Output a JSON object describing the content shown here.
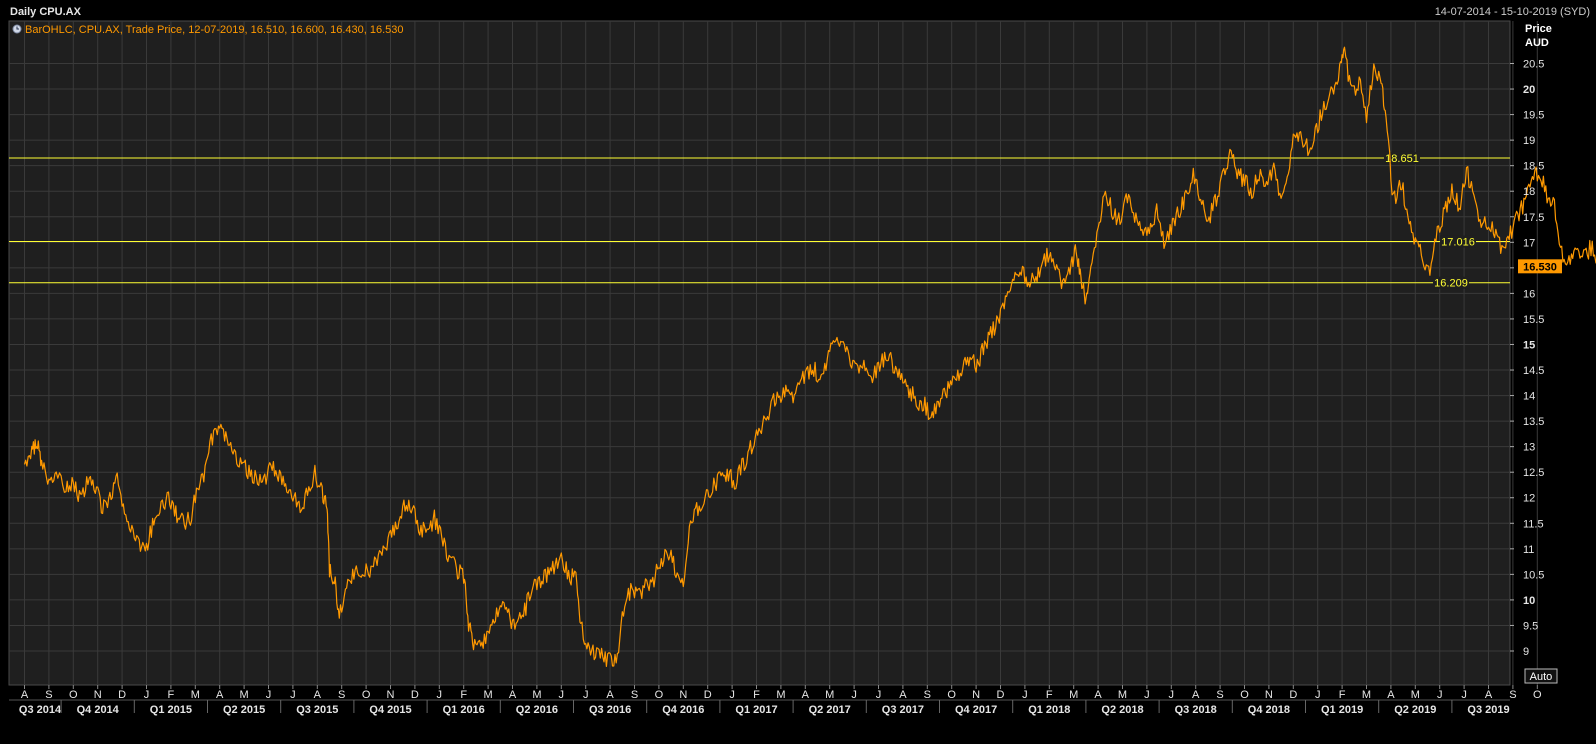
{
  "header": {
    "title": "Daily CPU.AX",
    "date_range": "14-07-2014 - 15-10-2019 (SYD)"
  },
  "legend": {
    "text": "BarOHLC, CPU.AX, Trade Price, 12-07-2019, 16.510, 16.600, 16.430, 16.530",
    "icon": "clock-icon"
  },
  "axis": {
    "price_label": "Price",
    "currency_label": "AUD",
    "auto_label": "Auto"
  },
  "colors": {
    "background": "#000000",
    "plot": "#1f1f1f",
    "grid": "#3a3a3a",
    "series": "#ff9900",
    "level_lines": "#ffff33",
    "text": "#e6e6e6",
    "last_price_badge": "#ff9900"
  },
  "chart_data": {
    "type": "line",
    "title": "Daily CPU.AX",
    "ylabel": "Price AUD",
    "ylim": [
      8.7,
      21.25
    ],
    "yticks": [
      9,
      9.5,
      10,
      10.5,
      11,
      11.5,
      12,
      12.5,
      13,
      13.5,
      14,
      14.5,
      15,
      15.5,
      16,
      16.5,
      17,
      17.5,
      18,
      18.5,
      19,
      19.5,
      20,
      20.5
    ],
    "ytick_labels": [
      "9",
      "9.5",
      "10",
      "10.5",
      "11",
      "11.5",
      "12",
      "12.5",
      "13",
      "13.5",
      "14",
      "14.5",
      "15",
      "15.5",
      "16",
      "16.5",
      "17",
      "17.5",
      "18",
      "18.5",
      "19",
      "19.5",
      "20",
      "20.5"
    ],
    "yticks_bold": [
      10,
      15,
      20
    ],
    "x_months": [
      "A",
      "S",
      "O",
      "N",
      "D",
      "J",
      "F",
      "M",
      "A",
      "M",
      "J",
      "J",
      "A",
      "S",
      "O",
      "N",
      "D",
      "J",
      "F",
      "M",
      "A",
      "M",
      "J",
      "J",
      "A",
      "S",
      "O",
      "N",
      "D",
      "J",
      "F",
      "M",
      "A",
      "M",
      "J",
      "J",
      "A",
      "S",
      "O",
      "N",
      "D",
      "J",
      "F",
      "M",
      "A",
      "M",
      "J",
      "J",
      "A",
      "S",
      "O",
      "N",
      "D",
      "J",
      "F",
      "M",
      "A",
      "M",
      "J",
      "J",
      "A",
      "S",
      "O"
    ],
    "x_quarters": [
      "Q3 2014",
      "Q4 2014",
      "Q1 2015",
      "Q2 2015",
      "Q3 2015",
      "Q4 2015",
      "Q1 2016",
      "Q2 2016",
      "Q3 2016",
      "Q4 2016",
      "Q1 2017",
      "Q2 2017",
      "Q3 2017",
      "Q4 2017",
      "Q1 2018",
      "Q2 2018",
      "Q3 2018",
      "Q4 2018",
      "Q1 2019",
      "Q2 2019",
      "Q3 2019"
    ],
    "series": [
      {
        "values": [
          [
            0.0,
            12.6
          ],
          [
            0.3,
            12.9
          ],
          [
            0.5,
            13.1
          ],
          [
            0.7,
            12.7
          ],
          [
            1.0,
            12.3
          ],
          [
            1.3,
            12.4
          ],
          [
            1.7,
            12.2
          ],
          [
            2.0,
            12.3
          ],
          [
            2.3,
            12.0
          ],
          [
            2.6,
            12.3
          ],
          [
            2.9,
            12.2
          ],
          [
            3.2,
            11.8
          ],
          [
            3.5,
            12.0
          ],
          [
            3.8,
            12.4
          ],
          [
            4.1,
            11.6
          ],
          [
            4.4,
            11.4
          ],
          [
            4.7,
            11.1
          ],
          [
            5.0,
            11.0
          ],
          [
            5.3,
            11.6
          ],
          [
            5.6,
            11.8
          ],
          [
            5.9,
            12.0
          ],
          [
            6.2,
            11.7
          ],
          [
            6.5,
            11.5
          ],
          [
            6.8,
            11.6
          ],
          [
            7.1,
            12.2
          ],
          [
            7.4,
            12.5
          ],
          [
            7.7,
            13.2
          ],
          [
            8.0,
            13.4
          ],
          [
            8.3,
            13.1
          ],
          [
            8.6,
            12.8
          ],
          [
            8.9,
            12.7
          ],
          [
            9.2,
            12.5
          ],
          [
            9.5,
            12.4
          ],
          [
            9.8,
            12.3
          ],
          [
            10.1,
            12.6
          ],
          [
            10.4,
            12.4
          ],
          [
            10.7,
            12.3
          ],
          [
            11.0,
            12.1
          ],
          [
            11.3,
            11.8
          ],
          [
            11.6,
            12.1
          ],
          [
            11.9,
            12.5
          ],
          [
            12.2,
            12.1
          ],
          [
            12.4,
            11.8
          ],
          [
            12.5,
            10.6
          ],
          [
            12.7,
            10.4
          ],
          [
            12.9,
            9.7
          ],
          [
            13.2,
            10.3
          ],
          [
            13.5,
            10.5
          ],
          [
            13.8,
            10.6
          ],
          [
            14.1,
            10.5
          ],
          [
            14.4,
            10.7
          ],
          [
            14.7,
            10.9
          ],
          [
            15.0,
            11.2
          ],
          [
            15.3,
            11.5
          ],
          [
            15.6,
            11.9
          ],
          [
            15.9,
            11.8
          ],
          [
            16.2,
            11.4
          ],
          [
            16.5,
            11.3
          ],
          [
            16.8,
            11.6
          ],
          [
            17.1,
            11.2
          ],
          [
            17.4,
            10.8
          ],
          [
            17.7,
            10.6
          ],
          [
            18.0,
            10.5
          ],
          [
            18.2,
            9.5
          ],
          [
            18.4,
            9.2
          ],
          [
            18.7,
            9.1
          ],
          [
            19.0,
            9.4
          ],
          [
            19.3,
            9.7
          ],
          [
            19.6,
            9.9
          ],
          [
            19.9,
            9.6
          ],
          [
            20.2,
            9.5
          ],
          [
            20.5,
            9.8
          ],
          [
            20.8,
            10.2
          ],
          [
            21.1,
            10.3
          ],
          [
            21.4,
            10.5
          ],
          [
            21.7,
            10.6
          ],
          [
            22.0,
            10.8
          ],
          [
            22.3,
            10.5
          ],
          [
            22.6,
            10.4
          ],
          [
            22.8,
            9.5
          ],
          [
            23.1,
            9.1
          ],
          [
            23.4,
            8.95
          ],
          [
            23.7,
            8.9
          ],
          [
            24.0,
            8.8
          ],
          [
            24.3,
            8.95
          ],
          [
            24.6,
            10.0
          ],
          [
            24.9,
            10.2
          ],
          [
            25.2,
            10.1
          ],
          [
            25.5,
            10.3
          ],
          [
            25.8,
            10.4
          ],
          [
            26.1,
            10.8
          ],
          [
            26.4,
            10.9
          ],
          [
            26.7,
            10.6
          ],
          [
            27.0,
            10.3
          ],
          [
            27.3,
            11.5
          ],
          [
            27.6,
            11.8
          ],
          [
            27.9,
            12.0
          ],
          [
            28.2,
            12.2
          ],
          [
            28.5,
            12.4
          ],
          [
            28.8,
            12.5
          ],
          [
            29.1,
            12.3
          ],
          [
            29.4,
            12.6
          ],
          [
            29.7,
            12.9
          ],
          [
            30.0,
            13.2
          ],
          [
            30.3,
            13.5
          ],
          [
            30.6,
            13.8
          ],
          [
            30.9,
            14.0
          ],
          [
            31.2,
            14.1
          ],
          [
            31.5,
            13.9
          ],
          [
            31.8,
            14.3
          ],
          [
            32.1,
            14.4
          ],
          [
            32.4,
            14.5
          ],
          [
            32.7,
            14.3
          ],
          [
            33.0,
            14.8
          ],
          [
            33.3,
            15.2
          ],
          [
            33.6,
            15.0
          ],
          [
            33.9,
            14.7
          ],
          [
            34.2,
            14.6
          ],
          [
            34.5,
            14.5
          ],
          [
            34.8,
            14.4
          ],
          [
            35.1,
            14.7
          ],
          [
            35.4,
            14.8
          ],
          [
            35.7,
            14.5
          ],
          [
            36.0,
            14.3
          ],
          [
            36.3,
            14.1
          ],
          [
            36.6,
            13.9
          ],
          [
            36.9,
            13.8
          ],
          [
            37.2,
            13.6
          ],
          [
            37.5,
            13.8
          ],
          [
            37.8,
            14.1
          ],
          [
            38.1,
            14.3
          ],
          [
            38.4,
            14.5
          ],
          [
            38.7,
            14.7
          ],
          [
            39.0,
            14.6
          ],
          [
            39.3,
            14.9
          ],
          [
            39.6,
            15.2
          ],
          [
            39.9,
            15.5
          ],
          [
            40.2,
            15.9
          ],
          [
            40.5,
            16.3
          ],
          [
            40.8,
            16.5
          ],
          [
            41.1,
            16.3
          ],
          [
            41.4,
            16.2
          ],
          [
            41.7,
            16.6
          ],
          [
            42.0,
            16.8
          ],
          [
            42.3,
            16.4
          ],
          [
            42.6,
            16.2
          ],
          [
            42.9,
            16.6
          ],
          [
            43.1,
            16.9
          ],
          [
            43.3,
            16.2
          ],
          [
            43.5,
            15.9
          ],
          [
            43.7,
            16.4
          ],
          [
            44.0,
            17.2
          ],
          [
            44.3,
            18.0
          ],
          [
            44.6,
            17.6
          ],
          [
            44.9,
            17.4
          ],
          [
            45.2,
            17.9
          ],
          [
            45.5,
            17.5
          ],
          [
            45.8,
            17.1
          ],
          [
            46.1,
            17.3
          ],
          [
            46.4,
            17.6
          ],
          [
            46.7,
            17.0
          ],
          [
            47.0,
            17.3
          ],
          [
            47.3,
            17.6
          ],
          [
            47.6,
            17.9
          ],
          [
            47.9,
            18.3
          ],
          [
            48.2,
            17.9
          ],
          [
            48.5,
            17.4
          ],
          [
            48.8,
            17.8
          ],
          [
            49.1,
            18.3
          ],
          [
            49.4,
            18.7
          ],
          [
            49.7,
            18.4
          ],
          [
            50.0,
            18.2
          ],
          [
            50.3,
            18.0
          ],
          [
            50.6,
            18.3
          ],
          [
            50.9,
            18.1
          ],
          [
            51.2,
            18.4
          ],
          [
            51.5,
            17.9
          ],
          [
            51.8,
            18.5
          ],
          [
            52.1,
            19.2
          ],
          [
            52.4,
            19.0
          ],
          [
            52.7,
            18.8
          ],
          [
            53.0,
            19.3
          ],
          [
            53.3,
            19.7
          ],
          [
            53.6,
            20.0
          ],
          [
            53.9,
            20.4
          ],
          [
            54.1,
            20.7
          ],
          [
            54.4,
            19.9
          ],
          [
            54.7,
            20.2
          ],
          [
            55.0,
            19.5
          ],
          [
            55.3,
            20.4
          ],
          [
            55.6,
            20.2
          ],
          [
            55.8,
            19.4
          ],
          [
            56.1,
            17.8
          ],
          [
            56.4,
            18.2
          ],
          [
            56.7,
            17.6
          ],
          [
            57.0,
            17.0
          ],
          [
            57.3,
            16.7
          ],
          [
            57.6,
            16.5
          ],
          [
            57.9,
            17.2
          ],
          [
            58.2,
            17.6
          ],
          [
            58.5,
            18.0
          ],
          [
            58.8,
            17.7
          ],
          [
            59.1,
            18.4
          ],
          [
            59.4,
            17.9
          ],
          [
            59.7,
            17.3
          ],
          [
            60.0,
            17.4
          ],
          [
            60.3,
            17.2
          ],
          [
            60.6,
            16.8
          ],
          [
            60.9,
            17.2
          ],
          [
            61.2,
            17.5
          ],
          [
            61.5,
            17.8
          ],
          [
            61.8,
            18.2
          ],
          [
            62.1,
            18.4
          ],
          [
            62.4,
            17.9
          ],
          [
            62.7,
            17.7
          ],
          [
            63.0,
            16.8
          ],
          [
            63.3,
            16.6
          ],
          [
            63.6,
            16.8
          ],
          [
            63.9,
            16.7
          ],
          [
            64.2,
            16.9
          ],
          [
            64.5,
            16.6
          ],
          [
            64.8,
            16.8
          ],
          [
            65.1,
            16.7
          ],
          [
            65.4,
            16.5
          ]
        ]
      }
    ],
    "level_lines": [
      {
        "value": 18.651,
        "label": "18.651"
      },
      {
        "value": 17.016,
        "label": "17.016"
      },
      {
        "value": 16.209,
        "label": "16.209"
      }
    ],
    "last_price": {
      "value": 16.53,
      "label": "16.530"
    },
    "grid": true
  }
}
